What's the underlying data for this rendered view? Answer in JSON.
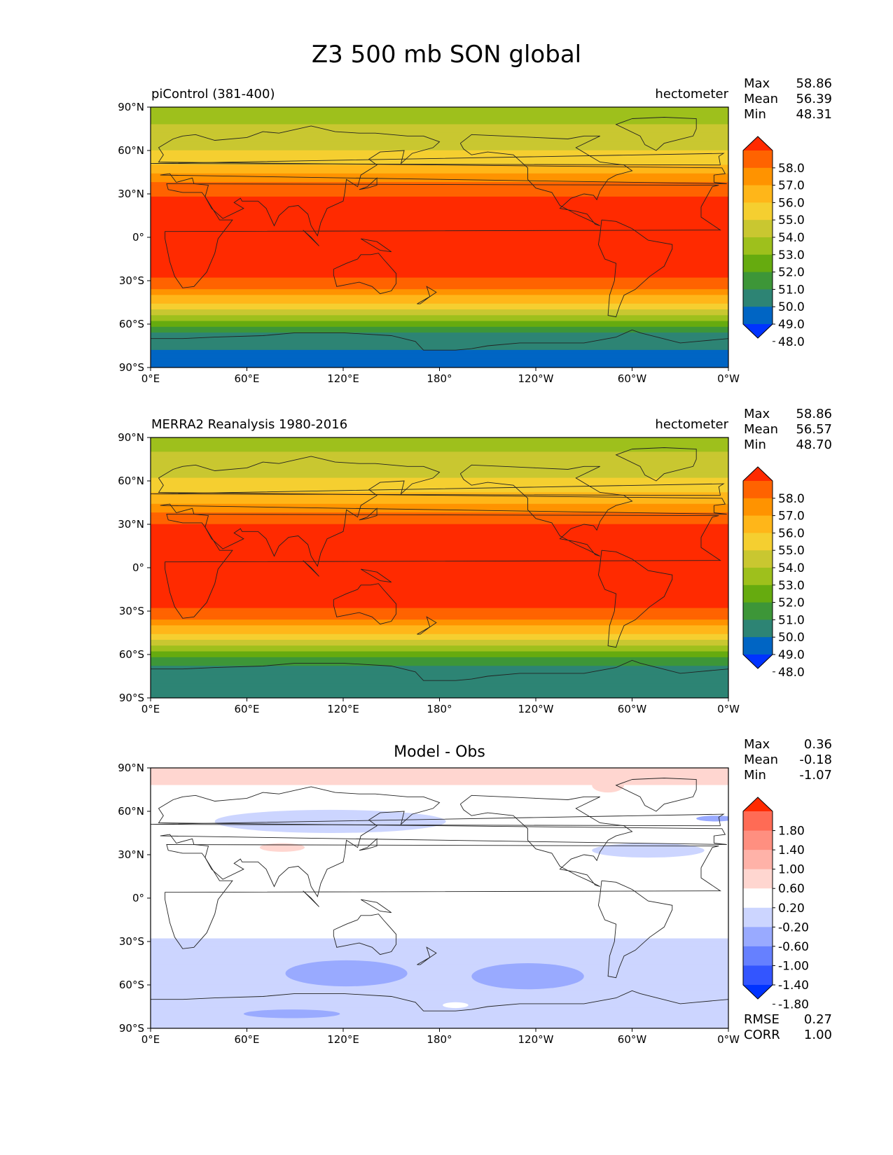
{
  "title": "Z3 500 mb SON global",
  "chart_data": [
    {
      "type": "heatmap",
      "subtitle": "piControl (381-400)",
      "units": "hectometer",
      "stats": [
        {
          "label": "Max",
          "value": "58.86"
        },
        {
          "label": "Mean",
          "value": "56.39"
        },
        {
          "label": "Min",
          "value": "48.31"
        }
      ],
      "x_ticks": [
        "0°E",
        "60°E",
        "120°E",
        "180°",
        "120°W",
        "60°W",
        "0°W"
      ],
      "y_ticks": [
        "90°N",
        "60°N",
        "30°N",
        "0°",
        "30°S",
        "60°S",
        "90°S"
      ],
      "xlim": [
        0,
        360
      ],
      "ylim": [
        -90,
        90
      ],
      "colorbar": {
        "levels": [
          "58.0",
          "57.0",
          "56.0",
          "55.0",
          "54.0",
          "53.0",
          "52.0",
          "51.0",
          "50.0",
          "49.0",
          "48.0"
        ],
        "colors": [
          "#ff2a00",
          "#ff6300",
          "#ff9300",
          "#ffb619",
          "#f5cf30",
          "#c9c730",
          "#9ec01c",
          "#66ab0f",
          "#3d9638",
          "#2d8474",
          "#0065c4",
          "#0033ff"
        ],
        "extend": "both"
      },
      "field": {
        "y": [
          90,
          80,
          70,
          60,
          50,
          45,
          40,
          35,
          30,
          25,
          20,
          0,
          -20,
          -25,
          -30,
          -35,
          -40,
          -45,
          -50,
          -55,
          -60,
          -65,
          -70,
          -75,
          -80,
          -90
        ],
        "z": [
          52.5,
          52.9,
          53.6,
          54.0,
          55.1,
          55.8,
          56.6,
          57.3,
          57.9,
          58.3,
          58.6,
          58.6,
          58.5,
          58.2,
          57.7,
          57.0,
          56.1,
          55.0,
          53.8,
          52.6,
          51.3,
          50.2,
          49.6,
          49.2,
          48.7,
          48.4
        ]
      }
    },
    {
      "type": "heatmap",
      "subtitle": "MERRA2 Reanalysis 1980-2016",
      "units": "hectometer",
      "stats": [
        {
          "label": "Max",
          "value": "58.86"
        },
        {
          "label": "Mean",
          "value": "56.57"
        },
        {
          "label": "Min",
          "value": "48.70"
        }
      ],
      "x_ticks": [
        "0°E",
        "60°E",
        "120°E",
        "180°",
        "120°W",
        "60°W",
        "0°W"
      ],
      "y_ticks": [
        "90°N",
        "60°N",
        "30°N",
        "0°",
        "30°S",
        "60°S",
        "90°S"
      ],
      "xlim": [
        0,
        360
      ],
      "ylim": [
        -90,
        90
      ],
      "colorbar": {
        "levels": [
          "58.0",
          "57.0",
          "56.0",
          "55.0",
          "54.0",
          "53.0",
          "52.0",
          "51.0",
          "50.0",
          "49.0",
          "48.0"
        ],
        "colors": [
          "#ff2a00",
          "#ff6300",
          "#ff9300",
          "#ffb619",
          "#f5cf30",
          "#c9c730",
          "#9ec01c",
          "#66ab0f",
          "#3d9638",
          "#2d8474",
          "#0065c4",
          "#0033ff"
        ],
        "extend": "both"
      },
      "field": {
        "y": [
          90,
          80,
          70,
          60,
          50,
          45,
          40,
          35,
          30,
          25,
          20,
          0,
          -20,
          -25,
          -30,
          -35,
          -40,
          -45,
          -50,
          -55,
          -60,
          -65,
          -70,
          -75,
          -80,
          -90
        ],
        "z": [
          52.6,
          53.0,
          53.7,
          54.1,
          55.2,
          55.9,
          56.7,
          57.4,
          58.0,
          58.4,
          58.7,
          58.7,
          58.6,
          58.3,
          57.8,
          57.1,
          56.2,
          55.1,
          53.9,
          52.7,
          51.4,
          50.4,
          49.7,
          49.4,
          49.3,
          49.2
        ]
      }
    },
    {
      "type": "heatmap",
      "title": "Model - Obs",
      "stats": [
        {
          "label": "Max",
          "value": "0.36"
        },
        {
          "label": "Mean",
          "value": "-0.18"
        },
        {
          "label": "Min",
          "value": "-1.07"
        }
      ],
      "footer_stats": [
        {
          "label": "RMSE",
          "value": "0.27"
        },
        {
          "label": "CORR",
          "value": "1.00"
        }
      ],
      "x_ticks": [
        "0°E",
        "60°E",
        "120°E",
        "180°",
        "120°W",
        "60°W",
        "0°W"
      ],
      "y_ticks": [
        "90°N",
        "60°N",
        "30°N",
        "0°",
        "30°S",
        "60°S",
        "90°S"
      ],
      "xlim": [
        0,
        360
      ],
      "ylim": [
        -90,
        90
      ],
      "colorbar": {
        "levels": [
          "1.80",
          "1.40",
          "1.00",
          "0.60",
          "0.20",
          "-0.20",
          "-0.60",
          "-1.00",
          "-1.40",
          "-1.80"
        ],
        "colors": [
          "#ff2a00",
          "#ff6b55",
          "#ff8f80",
          "#ffb2a8",
          "#ffd6d0",
          "#ffffff",
          "#ccd5ff",
          "#99aaff",
          "#6680ff",
          "#3355ff",
          "#0033ff"
        ],
        "extend": "both"
      },
      "field": {
        "y": [
          90,
          80,
          75,
          70,
          50,
          45,
          40,
          20,
          0,
          -20,
          -25,
          -30,
          -45,
          -60,
          -65,
          -70,
          -75,
          -80,
          -90
        ],
        "z": [
          0.3,
          0.3,
          0.0,
          -0.1,
          -0.1,
          -0.05,
          0.0,
          0.0,
          0.0,
          0.0,
          -0.1,
          -0.3,
          -0.3,
          -0.3,
          -0.4,
          -0.5,
          -0.6,
          -0.6,
          -0.6
        ]
      },
      "regions": [
        {
          "x": 112,
          "y": 53,
          "rx": 72,
          "ry": 8,
          "z": -0.3
        },
        {
          "x": 82,
          "y": 35,
          "rx": 14,
          "ry": 3,
          "z": 0.25
        },
        {
          "x": 310,
          "y": 33,
          "rx": 35,
          "ry": 5,
          "z": -0.3
        },
        {
          "x": 352,
          "y": 55,
          "rx": 12,
          "ry": 2,
          "z": -0.7
        },
        {
          "x": 285,
          "y": 78,
          "rx": 10,
          "ry": 5,
          "z": 0.25
        },
        {
          "x": 122,
          "y": -52,
          "rx": 38,
          "ry": 9,
          "z": -0.7
        },
        {
          "x": 235,
          "y": -54,
          "rx": 35,
          "ry": 9,
          "z": -0.7
        },
        {
          "x": 88,
          "y": -80,
          "rx": 30,
          "ry": 3,
          "z": -1.0
        },
        {
          "x": 190,
          "y": -74,
          "rx": 8,
          "ry": 2,
          "z": 0.0
        }
      ]
    }
  ]
}
